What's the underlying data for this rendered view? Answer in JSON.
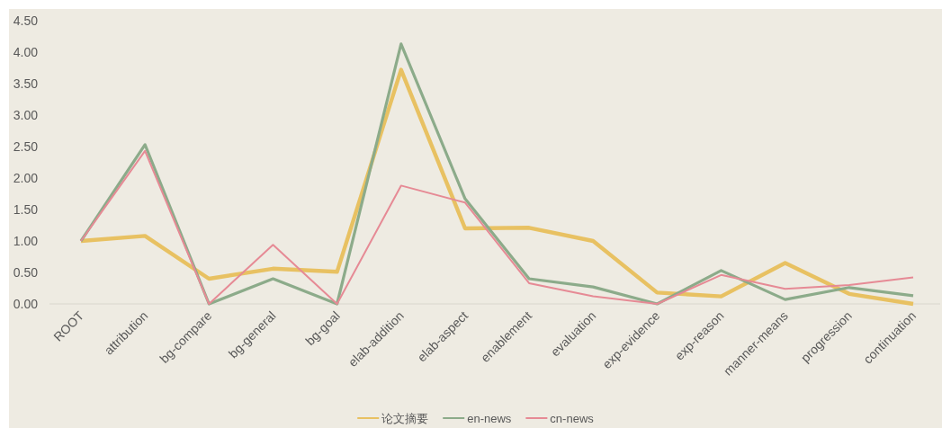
{
  "chart_data": {
    "type": "line",
    "categories": [
      "ROOT",
      "attribution",
      "bg-compare",
      "bg-general",
      "bg-goal",
      "elab-addition",
      "elab-aspect",
      "enablement",
      "evaluation",
      "exp-evidence",
      "exp-reason",
      "manner-means",
      "progression",
      "continuation"
    ],
    "series": [
      {
        "name": "论文摘要",
        "color": "#e8c162",
        "values": [
          1.0,
          1.08,
          0.4,
          0.56,
          0.51,
          3.72,
          1.2,
          1.21,
          1.0,
          0.18,
          0.12,
          0.65,
          0.16,
          0.0
        ]
      },
      {
        "name": "en-news",
        "color": "#8cab8a",
        "values": [
          1.0,
          2.53,
          0.0,
          0.4,
          0.0,
          4.13,
          1.67,
          0.4,
          0.27,
          0.0,
          0.53,
          0.07,
          0.26,
          0.13
        ]
      },
      {
        "name": "cn-news",
        "color": "#e68a95",
        "values": [
          1.0,
          2.43,
          0.0,
          0.94,
          0.0,
          1.88,
          1.61,
          0.33,
          0.12,
          0.0,
          0.46,
          0.24,
          0.3,
          0.42
        ]
      }
    ],
    "ylim": [
      0,
      4.5
    ],
    "yticks": [
      {
        "value": 0,
        "label": "0.00"
      },
      {
        "value": 0.5,
        "label": "0.50"
      },
      {
        "value": 1,
        "label": "1.00"
      },
      {
        "value": 1.5,
        "label": "1.50"
      },
      {
        "value": 2,
        "label": "2.00"
      },
      {
        "value": 2.5,
        "label": "2.50"
      },
      {
        "value": 3,
        "label": "3.00"
      },
      {
        "value": 3.5,
        "label": "3.50"
      },
      {
        "value": 4,
        "label": "4.00"
      },
      {
        "value": 4.5,
        "label": "4.50"
      }
    ],
    "grid": false,
    "legend": "bottom",
    "marker": "none",
    "line_style": "solid"
  }
}
